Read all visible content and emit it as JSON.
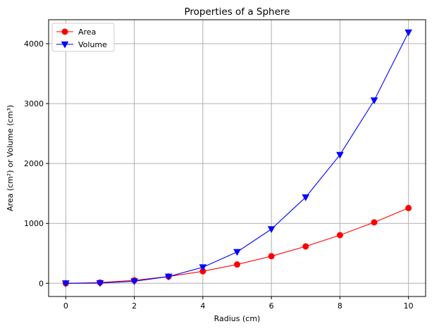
{
  "chart_data": {
    "type": "line",
    "title": "Properties of a Sphere",
    "xlabel": "Radius (cm)",
    "ylabel": "Area (cm²) or Volume (cm³)",
    "x": [
      0,
      1,
      2,
      3,
      4,
      5,
      6,
      7,
      8,
      9,
      10
    ],
    "xlim": [
      -0.5,
      10.5
    ],
    "ylim": [
      -220,
      4400
    ],
    "xticks": [
      0,
      2,
      4,
      6,
      8,
      10
    ],
    "yticks": [
      0,
      1000,
      2000,
      3000,
      4000
    ],
    "grid": true,
    "legend_position": "top-left",
    "series": [
      {
        "name": "Area",
        "color": "#ff0000",
        "marker": "circle",
        "values": [
          0,
          12.6,
          50.3,
          113.1,
          201.1,
          314.2,
          452.4,
          615.8,
          804.2,
          1017.9,
          1256.6
        ]
      },
      {
        "name": "Volume",
        "color": "#0000ff",
        "marker": "triangle-down",
        "values": [
          0,
          4.2,
          33.5,
          113.1,
          268.1,
          523.6,
          904.8,
          1436.8,
          2144.7,
          3053.6,
          4188.8
        ]
      }
    ]
  }
}
